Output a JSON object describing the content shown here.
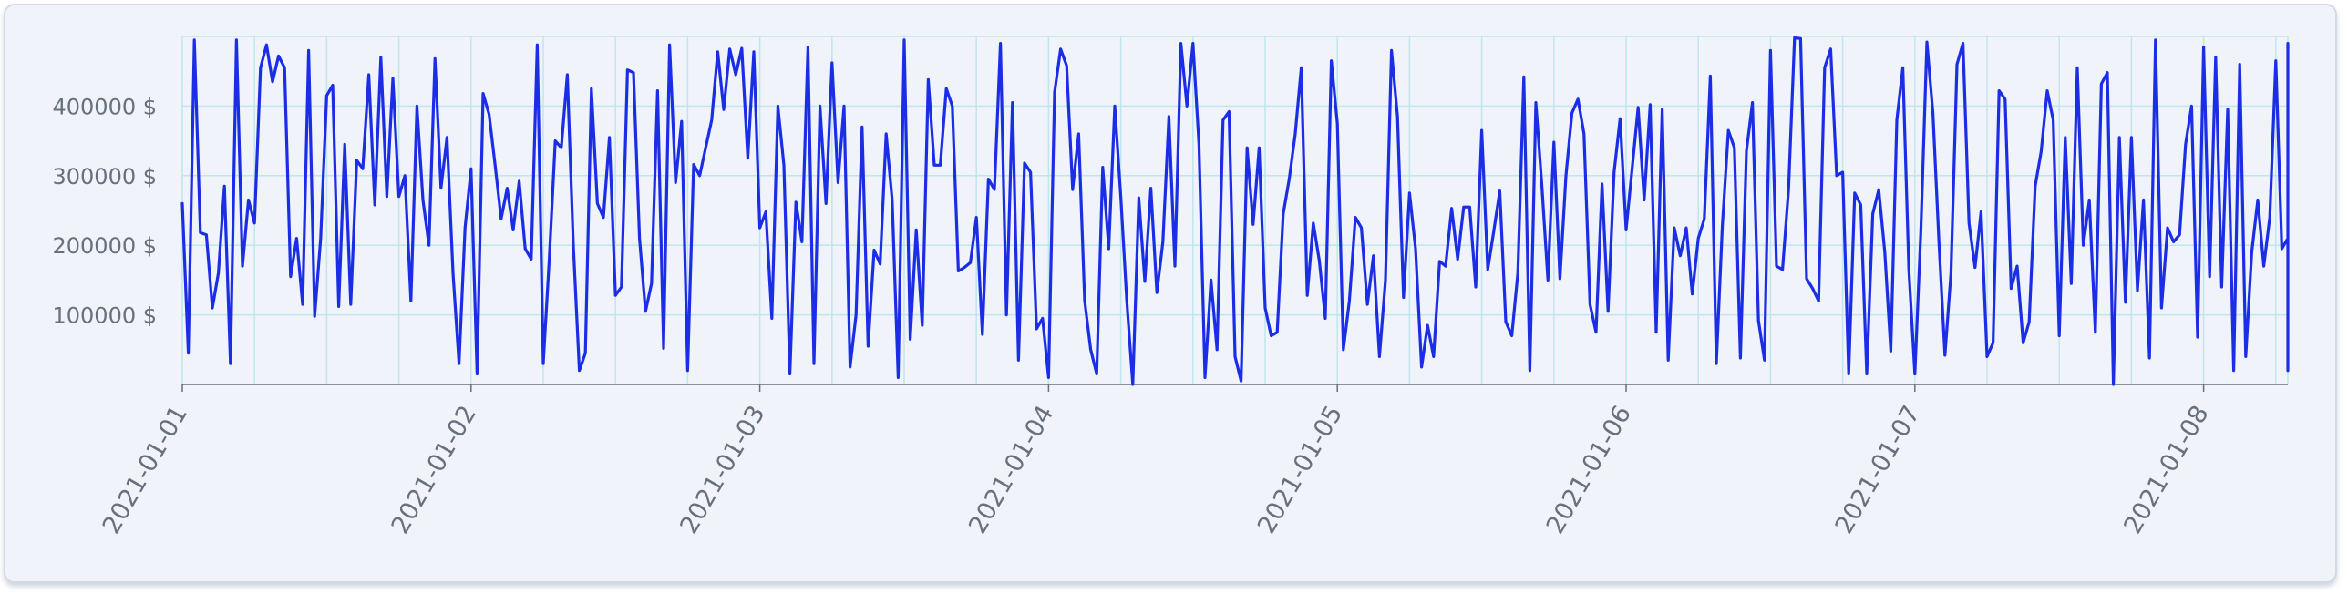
{
  "chart_data": {
    "type": "line",
    "title": "",
    "xlabel": "",
    "ylabel": "",
    "x_tick_labels": [
      "2021-01-01",
      "2021-01-02",
      "2021-01-03",
      "2021-01-04",
      "2021-01-05",
      "2021-01-06",
      "2021-01-07",
      "2021-01-08"
    ],
    "y_tick_labels": [
      "100000 $",
      "200000 $",
      "300000 $",
      "400000 $"
    ],
    "y_ticks": [
      100000,
      200000,
      300000,
      400000
    ],
    "ylim": [
      0,
      500000
    ],
    "xlim": [
      "2021-01-01T00:00",
      "2021-01-08T07:00"
    ],
    "x_interval": "30min",
    "x_start": "2021-01-01T00:00",
    "grid": true,
    "legend": "none",
    "colors": {
      "line": "#1b2ee6",
      "grid": "#bfe6ea",
      "axis": "#69707d",
      "card_bg": "#f0f3f9"
    },
    "series": [
      {
        "values": [
          260000,
          45000,
          495000,
          218000,
          215000,
          110000,
          160000,
          285000,
          30000,
          495000,
          170000,
          265000,
          232000,
          455000,
          488000,
          435000,
          472000,
          455000,
          155000,
          210000,
          115000,
          480000,
          98000,
          210000,
          415000,
          430000,
          112000,
          345000,
          115000,
          322000,
          310000,
          445000,
          258000,
          470000,
          270000,
          440000,
          270000,
          300000,
          120000,
          400000,
          265000,
          200000,
          468000,
          282000,
          355000,
          160000,
          30000,
          225000,
          310000,
          15000,
          418000,
          388000,
          315000,
          238000,
          282000,
          222000,
          292000,
          195000,
          180000,
          488000,
          30000,
          180000,
          350000,
          340000,
          445000,
          200000,
          20000,
          45000,
          425000,
          260000,
          240000,
          355000,
          128000,
          140000,
          452000,
          448000,
          210000,
          105000,
          145000,
          422000,
          52000,
          488000,
          290000,
          378000,
          20000,
          316000,
          300000,
          340000,
          380000,
          478000,
          395000,
          482000,
          445000,
          483000,
          325000,
          478000,
          225000,
          248000,
          95000,
          400000,
          315000,
          15000,
          262000,
          205000,
          485000,
          30000,
          400000,
          260000,
          462000,
          290000,
          400000,
          25000,
          100000,
          370000,
          55000,
          193000,
          173000,
          360000,
          265000,
          10000,
          495000,
          65000,
          222000,
          85000,
          438000,
          315000,
          315000,
          425000,
          400000,
          163000,
          168000,
          175000,
          240000,
          72000,
          295000,
          280000,
          490000,
          100000,
          405000,
          35000,
          318000,
          305000,
          80000,
          95000,
          10000,
          420000,
          482000,
          458000,
          280000,
          360000,
          120000,
          50000,
          15000,
          312000,
          195000,
          400000,
          270000,
          120000,
          0,
          268000,
          148000,
          282000,
          132000,
          205000,
          385000,
          170000,
          490000,
          400000,
          490000,
          345000,
          10000,
          150000,
          50000,
          380000,
          392000,
          40000,
          5000,
          340000,
          230000,
          340000,
          110000,
          70000,
          75000,
          245000,
          295000,
          360000,
          455000,
          128000,
          232000,
          178000,
          95000,
          465000,
          375000,
          50000,
          120000,
          240000,
          225000,
          115000,
          185000,
          40000,
          150000,
          480000,
          385000,
          125000,
          275000,
          195000,
          25000,
          85000,
          40000,
          177000,
          170000,
          253000,
          180000,
          255000,
          255000,
          140000,
          365000,
          165000,
          220000,
          278000,
          90000,
          70000,
          160000,
          442000,
          20000,
          405000,
          285000,
          150000,
          348000,
          152000,
          300000,
          390000,
          410000,
          360000,
          115000,
          75000,
          288000,
          105000,
          305000,
          382000,
          222000,
          310000,
          398000,
          265000,
          402000,
          75000,
          395000,
          35000,
          225000,
          185000,
          225000,
          130000,
          210000,
          238000,
          443000,
          30000,
          228000,
          365000,
          340000,
          38000,
          335000,
          405000,
          92000,
          35000,
          480000,
          170000,
          165000,
          280000,
          498000,
          497000,
          152000,
          138000,
          120000,
          455000,
          482000,
          300000,
          305000,
          15000,
          275000,
          258000,
          15000,
          245000,
          280000,
          190000,
          48000,
          380000,
          455000,
          165000,
          15000,
          222000,
          492000,
          390000,
          205000,
          42000,
          160000,
          460000,
          490000,
          232000,
          168000,
          248000,
          40000,
          60000,
          422000,
          410000,
          138000,
          170000,
          60000,
          90000,
          285000,
          335000,
          422000,
          380000,
          70000,
          355000,
          145000,
          455000,
          200000,
          265000,
          75000,
          432000,
          448000,
          0,
          355000,
          118000,
          355000,
          135000,
          265000,
          38000,
          495000,
          110000,
          225000,
          205000,
          215000,
          345000,
          400000,
          68000,
          485000,
          155000,
          470000,
          140000,
          395000,
          20000,
          460000,
          40000,
          190000,
          265000,
          170000,
          240000,
          465000,
          195000,
          210000,
          175000,
          60000,
          355000,
          255000,
          215000,
          345000,
          278000,
          490000,
          20000,
          180000,
          462000,
          325000,
          310000,
          232000,
          350000,
          260000
        ]
      }
    ]
  }
}
